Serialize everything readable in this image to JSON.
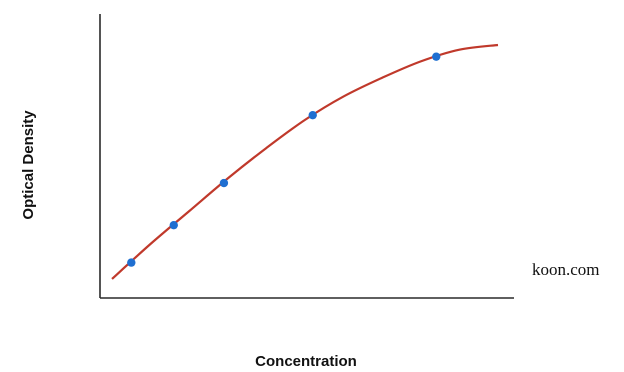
{
  "chart_data": {
    "type": "scatter",
    "title": "",
    "xlabel": "Concentration",
    "ylabel": "Optical Density",
    "xlim": [
      0,
      100
    ],
    "ylim": [
      0,
      100
    ],
    "grid": false,
    "legend": "none",
    "series": [
      {
        "x": [
          5,
          16,
          29,
          52,
          84
        ],
        "y": [
          10,
          26,
          44,
          73,
          98
        ]
      }
    ],
    "fit_curve": {
      "x": [
        0,
        10,
        20,
        30,
        40,
        50,
        60,
        70,
        80,
        90,
        100
      ],
      "y": [
        3,
        18,
        32,
        46,
        59,
        71,
        81,
        89,
        96,
        101,
        103
      ]
    },
    "colors": {
      "points": "#1f6fd1",
      "curve": "#c0392b",
      "axis": "#2a2a2a"
    }
  },
  "watermark": "koon.com"
}
